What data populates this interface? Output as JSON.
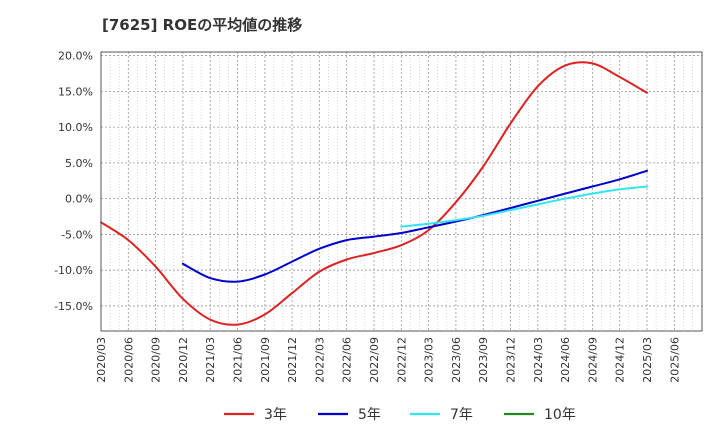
{
  "chart_data": {
    "type": "line",
    "title": "[7625]  ROEの平均値の推移",
    "xlabel": "",
    "ylabel": "",
    "x_ticks": [
      "2020/03",
      "2020/06",
      "2020/09",
      "2020/12",
      "2021/03",
      "2021/06",
      "2021/09",
      "2021/12",
      "2022/03",
      "2022/06",
      "2022/09",
      "2022/12",
      "2023/03",
      "2023/06",
      "2023/09",
      "2023/12",
      "2024/03",
      "2024/06",
      "2024/09",
      "2024/12",
      "2025/03",
      "2025/06"
    ],
    "y_ticks": [
      "20.0%",
      "15.0%",
      "10.0%",
      "5.0%",
      "0.0%",
      "-5.0%",
      "-10.0%",
      "-15.0%"
    ],
    "y_tick_values": [
      20,
      15,
      10,
      5,
      0,
      -5,
      -10,
      -15
    ],
    "ylim": [
      -18.5,
      20.5
    ],
    "grid": true,
    "legend_position": "bottom",
    "series": [
      {
        "name": "3年",
        "color": "#dd2222",
        "points": [
          [
            "2020/03",
            -3.3
          ],
          [
            "2020/06",
            -5.8
          ],
          [
            "2020/09",
            -9.5
          ],
          [
            "2020/12",
            -14.0
          ],
          [
            "2021/03",
            -16.9
          ],
          [
            "2021/06",
            -17.6
          ],
          [
            "2021/09",
            -16.2
          ],
          [
            "2021/12",
            -13.2
          ],
          [
            "2022/03",
            -10.2
          ],
          [
            "2022/06",
            -8.5
          ],
          [
            "2022/09",
            -7.6
          ],
          [
            "2022/12",
            -6.5
          ],
          [
            "2023/03",
            -4.4
          ],
          [
            "2023/06",
            -0.5
          ],
          [
            "2023/09",
            4.5
          ],
          [
            "2023/12",
            10.5
          ],
          [
            "2024/03",
            15.7
          ],
          [
            "2024/06",
            18.6
          ],
          [
            "2024/09",
            18.9
          ],
          [
            "2024/12",
            17.0
          ],
          [
            "2025/03",
            14.8
          ]
        ]
      },
      {
        "name": "5年",
        "color": "#0000cc",
        "points": [
          [
            "2020/12",
            -9.1
          ],
          [
            "2021/03",
            -11.1
          ],
          [
            "2021/06",
            -11.6
          ],
          [
            "2021/09",
            -10.6
          ],
          [
            "2021/12",
            -8.8
          ],
          [
            "2022/03",
            -7.0
          ],
          [
            "2022/06",
            -5.8
          ],
          [
            "2022/09",
            -5.3
          ],
          [
            "2022/12",
            -4.8
          ],
          [
            "2023/03",
            -4.0
          ],
          [
            "2023/06",
            -3.2
          ],
          [
            "2023/09",
            -2.3
          ],
          [
            "2023/12",
            -1.3
          ],
          [
            "2024/03",
            -0.3
          ],
          [
            "2024/06",
            0.7
          ],
          [
            "2024/09",
            1.7
          ],
          [
            "2024/12",
            2.7
          ],
          [
            "2025/03",
            3.9
          ]
        ]
      },
      {
        "name": "7年",
        "color": "#33e5ee",
        "points": [
          [
            "2022/12",
            -3.9
          ],
          [
            "2023/03",
            -3.5
          ],
          [
            "2023/06",
            -3.0
          ],
          [
            "2023/09",
            -2.4
          ],
          [
            "2023/12",
            -1.6
          ],
          [
            "2024/03",
            -0.8
          ],
          [
            "2024/06",
            0.0
          ],
          [
            "2024/09",
            0.7
          ],
          [
            "2024/12",
            1.3
          ],
          [
            "2025/03",
            1.7
          ]
        ]
      },
      {
        "name": "10年",
        "color": "#228822",
        "points": []
      }
    ]
  }
}
